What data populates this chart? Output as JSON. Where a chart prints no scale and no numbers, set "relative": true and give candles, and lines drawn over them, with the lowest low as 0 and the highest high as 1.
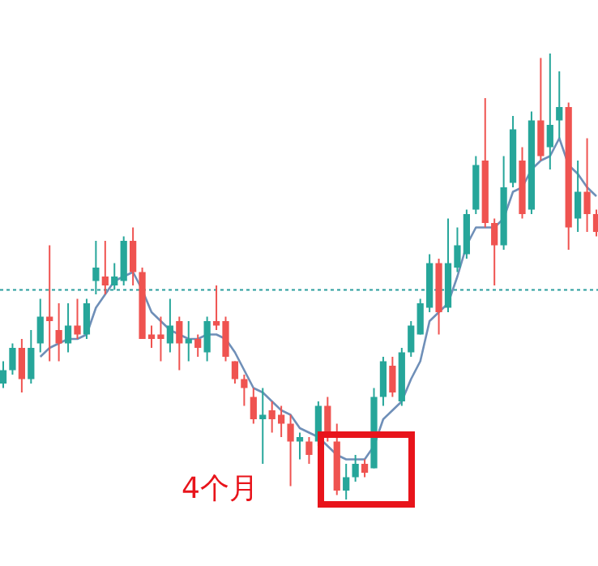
{
  "chart_data": {
    "type": "candlestick",
    "relative": true,
    "categories": [
      null,
      null,
      null,
      null,
      null,
      null,
      null,
      null,
      null,
      null,
      null,
      null,
      null,
      null,
      null,
      null,
      null,
      null,
      null,
      null,
      null,
      null,
      null,
      null,
      null,
      null,
      null,
      null,
      null,
      null,
      null,
      null,
      null,
      null,
      null,
      null,
      null,
      null,
      null,
      null,
      null,
      null,
      null,
      null,
      null,
      null,
      null,
      null,
      null,
      null,
      null,
      null,
      null,
      null,
      null,
      null,
      null,
      null,
      null,
      null,
      null,
      null,
      null,
      null,
      null
    ],
    "ohlc": [
      [
        0.26,
        0.31,
        0.25,
        0.29
      ],
      [
        0.29,
        0.35,
        0.28,
        0.34
      ],
      [
        0.34,
        0.36,
        0.24,
        0.27
      ],
      [
        0.27,
        0.38,
        0.26,
        0.34
      ],
      [
        0.35,
        0.45,
        0.33,
        0.41
      ],
      [
        0.41,
        0.57,
        0.31,
        0.4
      ],
      [
        0.38,
        0.44,
        0.31,
        0.35
      ],
      [
        0.35,
        0.44,
        0.33,
        0.39
      ],
      [
        0.39,
        0.45,
        0.36,
        0.37
      ],
      [
        0.37,
        0.45,
        0.36,
        0.44
      ],
      [
        0.49,
        0.58,
        0.46,
        0.52
      ],
      [
        0.5,
        0.58,
        0.46,
        0.48
      ],
      [
        0.48,
        0.53,
        0.47,
        0.5
      ],
      [
        0.49,
        0.59,
        0.48,
        0.58
      ],
      [
        0.58,
        0.61,
        0.48,
        0.51
      ],
      [
        0.51,
        0.52,
        0.36,
        0.36
      ],
      [
        0.37,
        0.39,
        0.34,
        0.36
      ],
      [
        0.37,
        0.41,
        0.31,
        0.36
      ],
      [
        0.35,
        0.45,
        0.33,
        0.39
      ],
      [
        0.4,
        0.41,
        0.29,
        0.35
      ],
      [
        0.35,
        0.4,
        0.31,
        0.36
      ],
      [
        0.36,
        0.37,
        0.32,
        0.34
      ],
      [
        0.33,
        0.41,
        0.31,
        0.4
      ],
      [
        0.4,
        0.48,
        0.38,
        0.39
      ],
      [
        0.4,
        0.41,
        0.31,
        0.32
      ],
      [
        0.31,
        0.31,
        0.26,
        0.27
      ],
      [
        0.27,
        0.28,
        0.21,
        0.25
      ],
      [
        0.23,
        0.25,
        0.17,
        0.18
      ],
      [
        0.18,
        0.25,
        0.08,
        0.19
      ],
      [
        0.2,
        0.22,
        0.15,
        0.18
      ],
      [
        0.19,
        0.21,
        0.14,
        0.17
      ],
      [
        0.17,
        0.19,
        0.03,
        0.13
      ],
      [
        0.13,
        0.15,
        0.09,
        0.14
      ],
      [
        0.13,
        0.14,
        0.08,
        0.1
      ],
      [
        0.13,
        0.22,
        0.12,
        0.21
      ],
      [
        0.21,
        0.23,
        0.13,
        0.15
      ],
      [
        0.13,
        0.17,
        0.01,
        0.02
      ],
      [
        0.02,
        0.08,
        0.0,
        0.05
      ],
      [
        0.05,
        0.1,
        0.04,
        0.08
      ],
      [
        0.08,
        0.09,
        0.05,
        0.06
      ],
      [
        0.07,
        0.25,
        0.07,
        0.23
      ],
      [
        0.23,
        0.32,
        0.21,
        0.31
      ],
      [
        0.3,
        0.32,
        0.23,
        0.24
      ],
      [
        0.22,
        0.34,
        0.21,
        0.33
      ],
      [
        0.33,
        0.4,
        0.32,
        0.39
      ],
      [
        0.37,
        0.45,
        0.37,
        0.44
      ],
      [
        0.43,
        0.55,
        0.42,
        0.53
      ],
      [
        0.53,
        0.54,
        0.37,
        0.42
      ],
      [
        0.43,
        0.63,
        0.42,
        0.53
      ],
      [
        0.52,
        0.61,
        0.51,
        0.57
      ],
      [
        0.55,
        0.65,
        0.54,
        0.64
      ],
      [
        0.65,
        0.77,
        0.64,
        0.75
      ],
      [
        0.76,
        0.9,
        0.61,
        0.62
      ],
      [
        0.62,
        0.63,
        0.48,
        0.57
      ],
      [
        0.57,
        0.77,
        0.56,
        0.7
      ],
      [
        0.71,
        0.86,
        0.7,
        0.83
      ],
      [
        0.76,
        0.79,
        0.63,
        0.64
      ],
      [
        0.65,
        0.87,
        0.64,
        0.85
      ],
      [
        0.85,
        0.99,
        0.76,
        0.77
      ],
      [
        0.79,
        1.0,
        0.74,
        0.84
      ],
      [
        0.85,
        0.96,
        0.81,
        0.88
      ],
      [
        0.88,
        0.89,
        0.56,
        0.61
      ],
      [
        0.63,
        0.76,
        0.6,
        0.69
      ],
      [
        0.69,
        0.81,
        0.6,
        0.64
      ],
      [
        0.64,
        0.65,
        0.59,
        0.6
      ]
    ],
    "colors": [
      "#26a69a",
      "#26a69a",
      "#ef5350",
      "#26a69a",
      "#26a69a",
      "#ef5350",
      "#ef5350",
      "#26a69a",
      "#ef5350",
      "#26a69a",
      "#26a69a",
      "#ef5350",
      "#26a69a",
      "#26a69a",
      "#ef5350",
      "#ef5350",
      "#ef5350",
      "#ef5350",
      "#26a69a",
      "#ef5350",
      "#26a69a",
      "#ef5350",
      "#26a69a",
      "#ef5350",
      "#ef5350",
      "#ef5350",
      "#ef5350",
      "#ef5350",
      "#26a69a",
      "#ef5350",
      "#ef5350",
      "#ef5350",
      "#26a69a",
      "#ef5350",
      "#26a69a",
      "#ef5350",
      "#ef5350",
      "#26a69a",
      "#26a69a",
      "#ef5350",
      "#26a69a",
      "#26a69a",
      "#ef5350",
      "#26a69a",
      "#26a69a",
      "#26a69a",
      "#26a69a",
      "#ef5350",
      "#26a69a",
      "#26a69a",
      "#26a69a",
      "#26a69a",
      "#ef5350",
      "#ef5350",
      "#26a69a",
      "#26a69a",
      "#ef5350",
      "#26a69a",
      "#ef5350",
      "#26a69a",
      "#26a69a",
      "#ef5350",
      "#26a69a",
      "#ef5350",
      "#ef5350"
    ],
    "series": [
      {
        "type": "line",
        "color": "#6f8fb8",
        "values": [
          null,
          null,
          null,
          null,
          0.32,
          0.34,
          0.35,
          0.36,
          0.36,
          0.37,
          0.43,
          0.46,
          0.49,
          0.5,
          0.51,
          0.47,
          0.42,
          0.4,
          0.38,
          0.37,
          0.36,
          0.36,
          0.37,
          0.37,
          0.36,
          0.33,
          0.29,
          0.25,
          0.24,
          0.22,
          0.2,
          0.19,
          0.16,
          0.15,
          0.14,
          0.12,
          0.1,
          0.09,
          0.09,
          0.09,
          0.12,
          0.18,
          0.2,
          0.22,
          0.27,
          0.31,
          0.4,
          0.42,
          0.44,
          0.5,
          0.57,
          0.61,
          0.61,
          0.61,
          0.63,
          0.69,
          0.7,
          0.74,
          0.76,
          0.77,
          0.81,
          0.75,
          0.73,
          0.7,
          0.68
        ]
      }
    ],
    "ref_lines": [
      {
        "axis": "y",
        "value": 0.47,
        "color": "#2a9d9d",
        "line_style": "dotted"
      }
    ],
    "annotations": [
      "4个月"
    ]
  }
}
